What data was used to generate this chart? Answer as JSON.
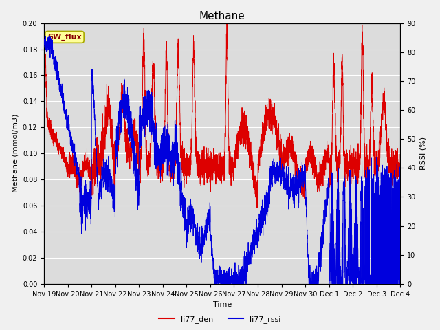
{
  "title": "Methane",
  "xlabel": "Time",
  "ylabel_left": "Methane (mmol/m3)",
  "ylabel_right": "RSSI (%)",
  "ylim_left": [
    0.0,
    0.2
  ],
  "ylim_right": [
    0,
    90
  ],
  "yticks_left": [
    0.0,
    0.02,
    0.04,
    0.06,
    0.08,
    0.1,
    0.12,
    0.14,
    0.16,
    0.18,
    0.2
  ],
  "yticks_right": [
    0,
    10,
    20,
    30,
    40,
    50,
    60,
    70,
    80,
    90
  ],
  "plot_bg_color": "#dcdcdc",
  "fig_bg_color": "#f0f0f0",
  "grid_color": "#ffffff",
  "line_color_red": "#dd0000",
  "line_color_blue": "#0000dd",
  "legend_label_red": "li77_den",
  "legend_label_blue": "li77_rssi",
  "annotation_text": "SW_flux",
  "annotation_bg": "#ffff99",
  "annotation_border": "#aaaa00",
  "annotation_text_color": "#880000",
  "title_fontsize": 11,
  "axis_label_fontsize": 8,
  "tick_fontsize": 7,
  "legend_fontsize": 8,
  "linewidth": 0.7
}
